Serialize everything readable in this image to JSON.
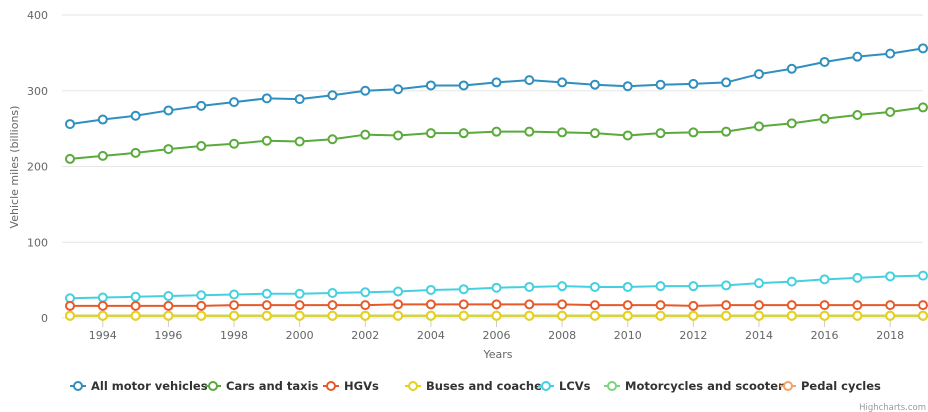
{
  "chart_data": {
    "type": "line",
    "title": "",
    "xlabel": "Years",
    "ylabel": "Vehicle miles (billions)",
    "x": [
      1993,
      1994,
      1995,
      1996,
      1997,
      1998,
      1999,
      2000,
      2001,
      2002,
      2003,
      2004,
      2005,
      2006,
      2007,
      2008,
      2009,
      2010,
      2011,
      2012,
      2013,
      2014,
      2015,
      2016,
      2017,
      2018,
      2019
    ],
    "xticks": [
      "1994",
      "1996",
      "1998",
      "2000",
      "2002",
      "2004",
      "2006",
      "2008",
      "2010",
      "2012",
      "2014",
      "2016",
      "2018"
    ],
    "yticks": [
      "0",
      "100",
      "200",
      "300",
      "400"
    ],
    "ylim": [
      0,
      400
    ],
    "grid": "horizontal",
    "legend": "bottom",
    "series": [
      {
        "name": "All motor vehicles",
        "color": "#2f8fbf",
        "values": [
          256,
          262,
          267,
          274,
          280,
          285,
          290,
          289,
          294,
          300,
          302,
          307,
          307,
          311,
          314,
          311,
          308,
          306,
          308,
          309,
          311,
          322,
          329,
          338,
          345,
          349,
          356
        ]
      },
      {
        "name": "Cars and taxis",
        "color": "#5aaa3c",
        "values": [
          210,
          214,
          218,
          223,
          227,
          230,
          234,
          233,
          236,
          242,
          241,
          244,
          244,
          246,
          246,
          245,
          244,
          241,
          244,
          245,
          246,
          253,
          257,
          263,
          268,
          272,
          278
        ]
      },
      {
        "name": "HGVs",
        "color": "#e8592a",
        "values": [
          16,
          16,
          16,
          16,
          16,
          17,
          17,
          17,
          17,
          17,
          18,
          18,
          18,
          18,
          18,
          18,
          17,
          17,
          17,
          16,
          17,
          17,
          17,
          17,
          17,
          17,
          17
        ]
      },
      {
        "name": "Buses and coaches",
        "color": "#e6d11c",
        "values": [
          3,
          3,
          3,
          3,
          3,
          3,
          3,
          3,
          3,
          3,
          3,
          3,
          3,
          3,
          3,
          3,
          3,
          3,
          3,
          3,
          3,
          3,
          3,
          3,
          3,
          3,
          3
        ]
      },
      {
        "name": "LCVs",
        "color": "#45d0e0",
        "values": [
          26,
          27,
          28,
          29,
          30,
          31,
          32,
          32,
          33,
          34,
          35,
          37,
          38,
          40,
          41,
          42,
          41,
          41,
          42,
          42,
          43,
          46,
          48,
          51,
          53,
          55,
          56
        ]
      },
      {
        "name": "Motorcycles and scooters",
        "color": "#7ad67a",
        "values": [
          3,
          3,
          3,
          3,
          3,
          3,
          3,
          3,
          3,
          3,
          3,
          3,
          3,
          3,
          3,
          3,
          3,
          3,
          3,
          3,
          3,
          3,
          3,
          3,
          3,
          3,
          3
        ]
      },
      {
        "name": "Pedal cycles",
        "color": "#f2a36a",
        "values": [
          3,
          3,
          3,
          3,
          3,
          3,
          3,
          3,
          3,
          3,
          3,
          3,
          3,
          3,
          3,
          3,
          3,
          3,
          3,
          3,
          3,
          3,
          3,
          3,
          3,
          3,
          3
        ]
      }
    ],
    "credit": "Highcharts.com"
  }
}
